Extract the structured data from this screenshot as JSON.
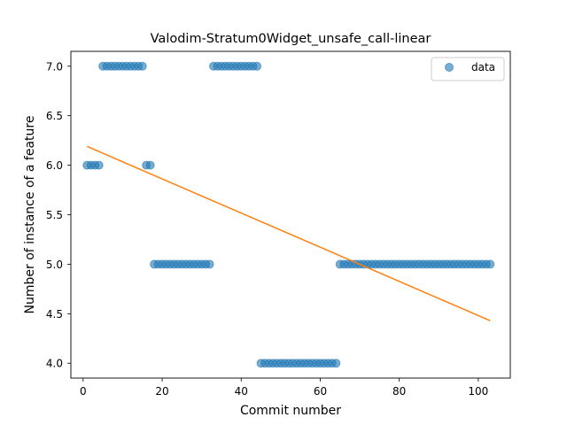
{
  "chart_data": {
    "type": "scatter",
    "title": "Valodim-Stratum0Widget_unsafe_call-linear",
    "xlabel": "Commit number",
    "ylabel": "Number of instance of a feature",
    "xlim": [
      -3.1,
      108.1
    ],
    "ylim": [
      3.85,
      7.15
    ],
    "x_ticks": [
      0,
      20,
      40,
      60,
      80,
      100
    ],
    "y_ticks": [
      4.0,
      4.5,
      5.0,
      5.5,
      6.0,
      6.5,
      7.0
    ],
    "grid": false,
    "legend": {
      "position": "top-right",
      "entries": [
        "data"
      ]
    },
    "series": [
      {
        "name": "data",
        "kind": "points",
        "color": "#1f77b4",
        "x": [
          1,
          2,
          3,
          4,
          5,
          6,
          7,
          8,
          9,
          10,
          11,
          12,
          13,
          14,
          15,
          16,
          17,
          18,
          19,
          20,
          21,
          22,
          23,
          24,
          25,
          26,
          27,
          28,
          29,
          30,
          31,
          32,
          33,
          34,
          35,
          36,
          37,
          38,
          39,
          40,
          41,
          42,
          43,
          44,
          45,
          46,
          47,
          48,
          49,
          50,
          51,
          52,
          53,
          54,
          55,
          56,
          57,
          58,
          59,
          60,
          61,
          62,
          63,
          64,
          65,
          66,
          67,
          68,
          69,
          70,
          71,
          72,
          73,
          74,
          75,
          76,
          77,
          78,
          79,
          80,
          81,
          82,
          83,
          84,
          85,
          86,
          87,
          88,
          89,
          90,
          91,
          92,
          93,
          94,
          95,
          96,
          97,
          98,
          99,
          100,
          101,
          102,
          103
        ],
        "y": [
          6,
          6,
          6,
          6,
          7,
          7,
          7,
          7,
          7,
          7,
          7,
          7,
          7,
          7,
          7,
          6,
          6,
          5,
          5,
          5,
          5,
          5,
          5,
          5,
          5,
          5,
          5,
          5,
          5,
          5,
          5,
          5,
          7,
          7,
          7,
          7,
          7,
          7,
          7,
          7,
          7,
          7,
          7,
          7,
          4,
          4,
          4,
          4,
          4,
          4,
          4,
          4,
          4,
          4,
          4,
          4,
          4,
          4,
          4,
          4,
          4,
          4,
          4,
          4,
          5,
          5,
          5,
          5,
          5,
          5,
          5,
          5,
          5,
          5,
          5,
          5,
          5,
          5,
          5,
          5,
          5,
          5,
          5,
          5,
          5,
          5,
          5,
          5,
          5,
          5,
          5,
          5,
          5,
          5,
          5,
          5,
          5,
          5,
          5,
          5,
          5,
          5,
          5
        ]
      },
      {
        "kind": "line",
        "color": "#ff7f0e",
        "x": [
          1,
          103
        ],
        "y": [
          6.19,
          4.43
        ]
      }
    ]
  }
}
